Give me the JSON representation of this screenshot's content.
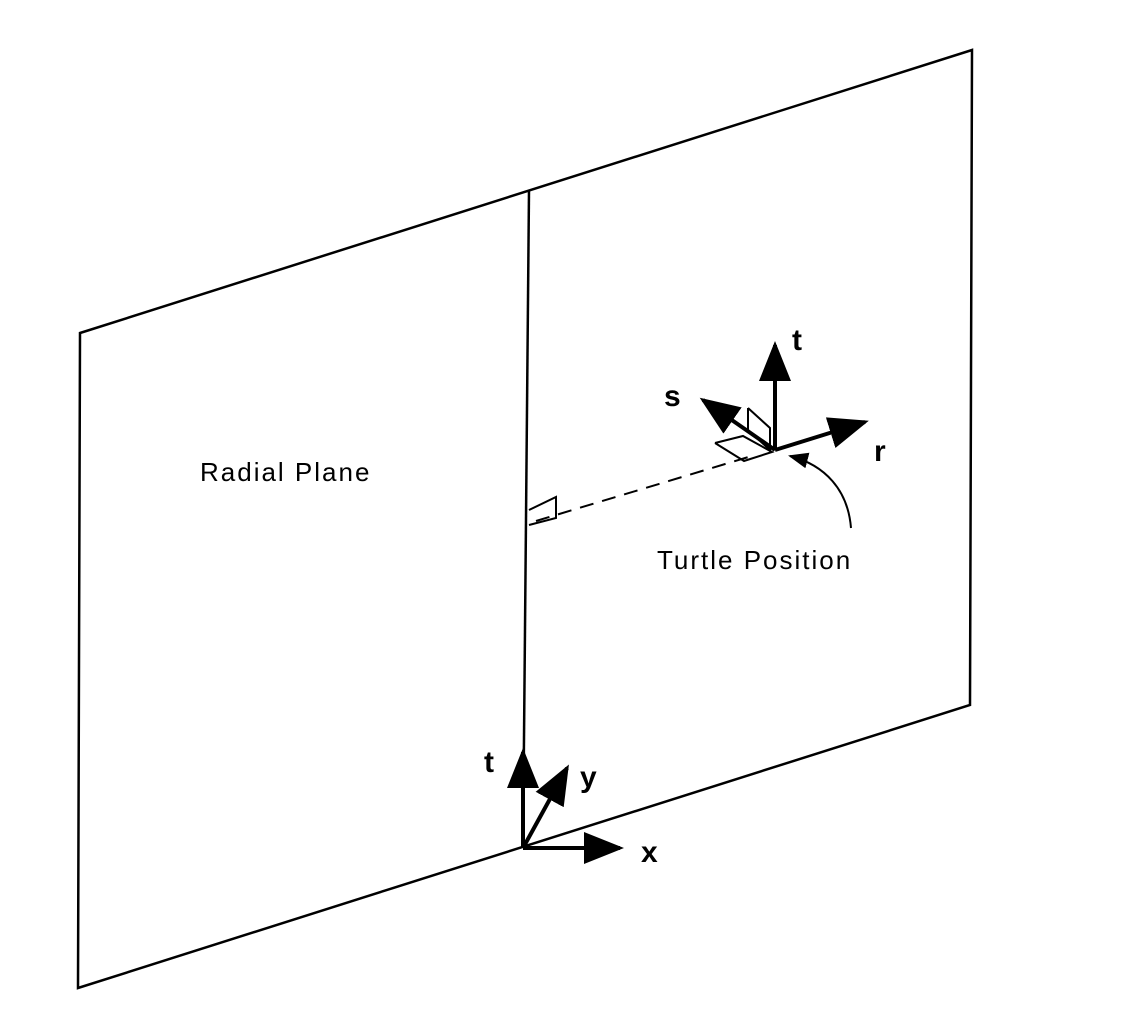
{
  "labels": {
    "radial_plane": "Radial Plane",
    "turtle_position": "Turtle Position"
  },
  "turtle_axes": {
    "r": "r",
    "s": "s",
    "t": "t"
  },
  "global_axes": {
    "x": "x",
    "y": "y",
    "t": "t"
  },
  "colors": {
    "ink": "#000000",
    "background": "#ffffff"
  }
}
